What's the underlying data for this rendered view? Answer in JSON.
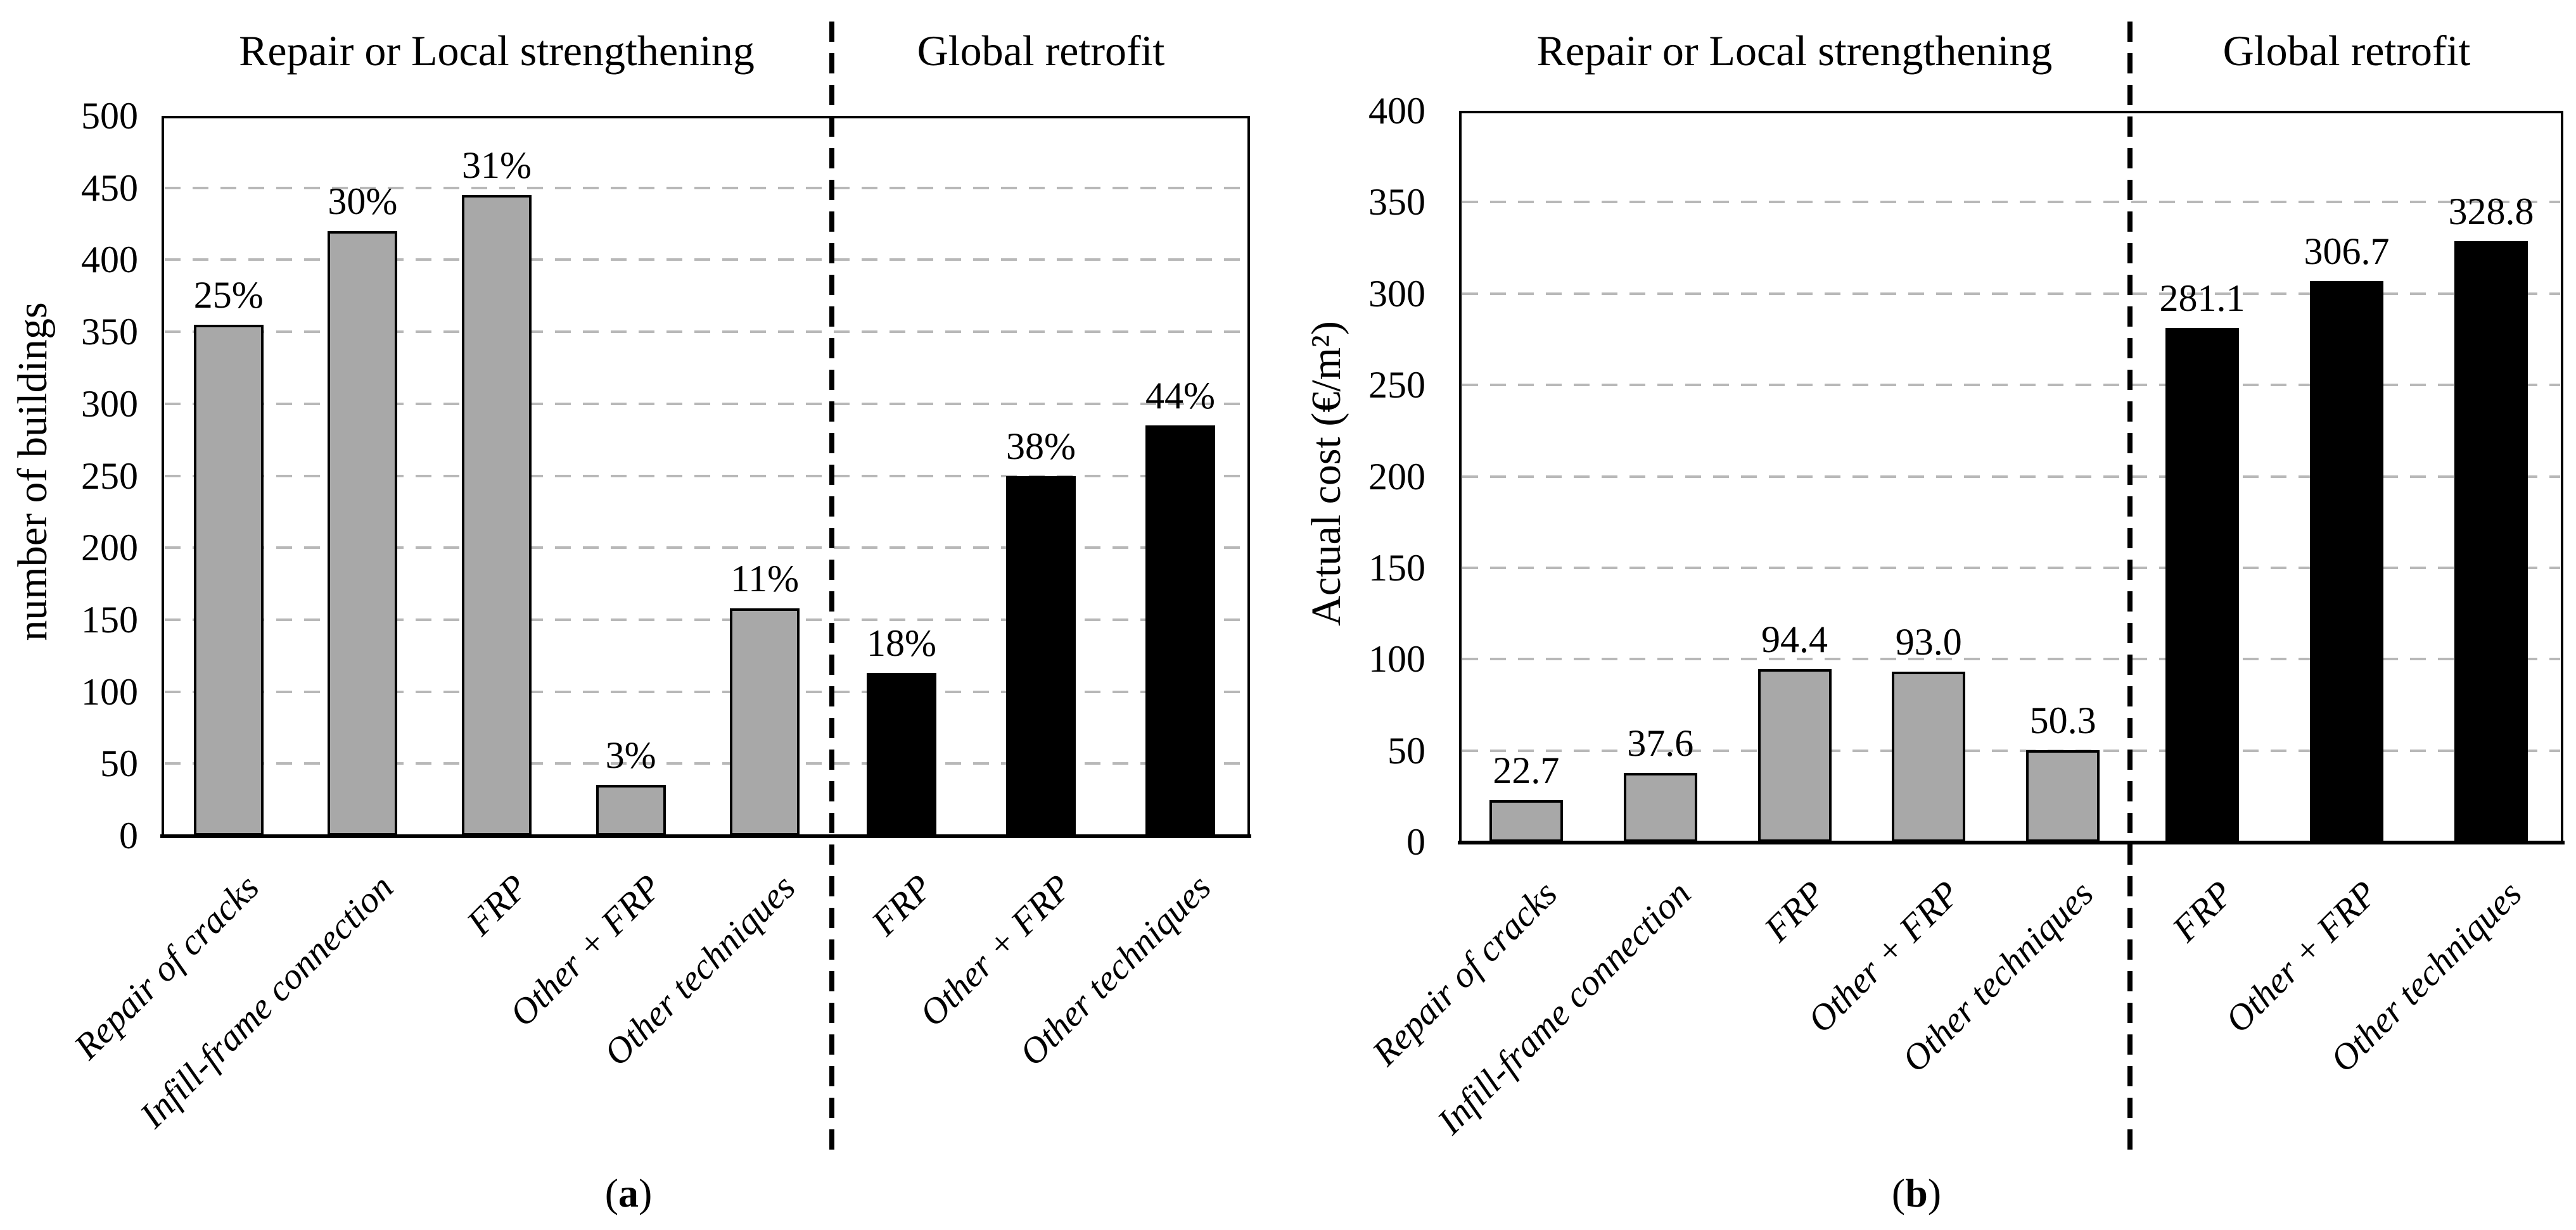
{
  "figure": {
    "background": "#ffffff",
    "text_color": "#000000",
    "gridline_color": "#b8b8b8",
    "bar_fill_gray": "#a8a8a8",
    "bar_fill_black": "#000000"
  },
  "chart_data": [
    {
      "type": "bar",
      "panel": "a",
      "caption_open": "(",
      "caption_letter": "a",
      "caption_close": ")",
      "section_titles": [
        "Repair or Local strengthening",
        "Global retrofit"
      ],
      "section_counts": [
        5,
        3
      ],
      "divider_style": "dashed",
      "ylabel": "number of buildings",
      "ylim": [
        0,
        500
      ],
      "yticks": [
        0,
        50,
        100,
        150,
        200,
        250,
        300,
        350,
        400,
        450,
        500
      ],
      "grid": true,
      "legend_position": "none",
      "categories": [
        "Repair of cracks",
        "Infill-frame connection",
        "FRP",
        "Other + FRP",
        "Other techniques",
        "FRP",
        "Other + FRP",
        "Other techniques"
      ],
      "values": [
        355,
        420,
        445,
        35,
        158,
        113,
        250,
        285
      ],
      "value_labels": [
        "25%",
        "30%",
        "31%",
        "3%",
        "11%",
        "18%",
        "38%",
        "44%"
      ],
      "bar_colors": [
        "#a8a8a8",
        "#a8a8a8",
        "#a8a8a8",
        "#a8a8a8",
        "#a8a8a8",
        "#000000",
        "#000000",
        "#000000"
      ]
    },
    {
      "type": "bar",
      "panel": "b",
      "caption_open": "(",
      "caption_letter": "b",
      "caption_close": ")",
      "section_titles": [
        "Repair or Local strengthening",
        "Global retrofit"
      ],
      "section_counts": [
        5,
        3
      ],
      "divider_style": "dashed",
      "ylabel": "Actual cost (€/m²)",
      "ylim": [
        0,
        400
      ],
      "yticks": [
        0,
        50,
        100,
        150,
        200,
        250,
        300,
        350,
        400
      ],
      "grid": true,
      "legend_position": "none",
      "categories": [
        "Repair of cracks",
        "Infill-frame connection",
        "FRP",
        "Other + FRP",
        "Other techniques",
        "FRP",
        "Other + FRP",
        "Other techniques"
      ],
      "values": [
        22.7,
        37.6,
        94.4,
        93.0,
        50.3,
        281.1,
        306.7,
        328.8
      ],
      "value_labels": [
        "22.7",
        "37.6",
        "94.4",
        "93.0",
        "50.3",
        "281.1",
        "306.7",
        "328.8"
      ],
      "bar_colors": [
        "#a8a8a8",
        "#a8a8a8",
        "#a8a8a8",
        "#a8a8a8",
        "#a8a8a8",
        "#000000",
        "#000000",
        "#000000"
      ]
    }
  ]
}
